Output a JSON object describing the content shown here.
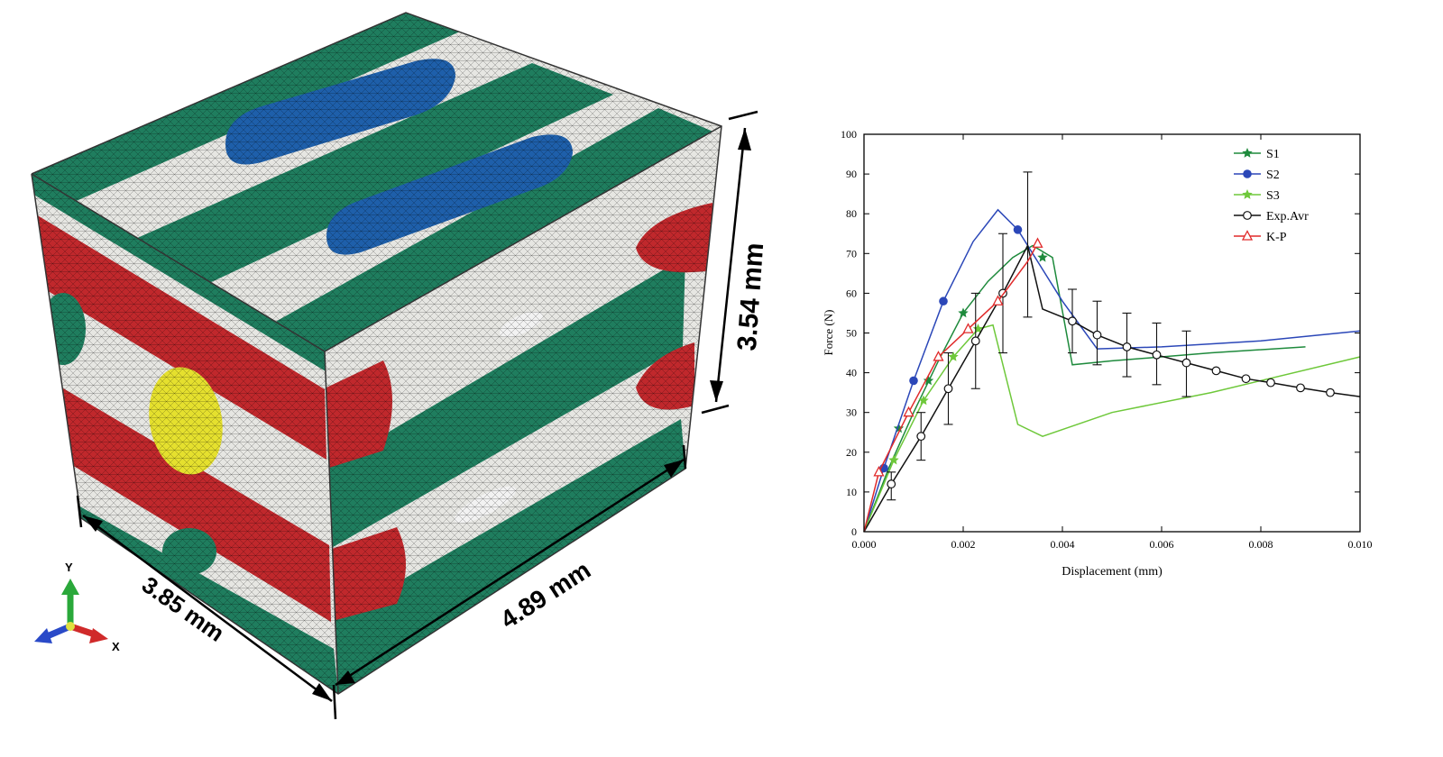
{
  "model": {
    "dimensions": {
      "height": "3.54 mm",
      "width": "4.89 mm",
      "depth": "3.85 mm"
    },
    "triad": {
      "y": "Y",
      "x": "X"
    },
    "colors": {
      "green": "#1f7d5e",
      "blue": "#1e5faa",
      "red": "#c0282c",
      "yellow": "#e5e02e",
      "matrix": "#e6e6e2"
    }
  },
  "chart_data": {
    "type": "line",
    "xlabel": "Displacement (mm)",
    "ylabel": "Force (N)",
    "xlim": [
      0,
      0.01
    ],
    "ylim": [
      0,
      100
    ],
    "xticks": [
      "0.000",
      "0.002",
      "0.004",
      "0.006",
      "0.008",
      "0.010"
    ],
    "yticks": [
      "0",
      "10",
      "20",
      "30",
      "40",
      "50",
      "60",
      "70",
      "80",
      "90",
      "100"
    ],
    "legend_position": "top-right",
    "series": [
      {
        "name": "S1",
        "color": "#1e8a3c",
        "marker": "star",
        "x": [
          0,
          0.0005,
          0.001,
          0.0015,
          0.002,
          0.0025,
          0.003,
          0.0034,
          0.0038,
          0.0042,
          0.005,
          0.006,
          0.007,
          0.0089
        ],
        "y": [
          0,
          16,
          30,
          43,
          55,
          63,
          69,
          72,
          69,
          42,
          43,
          44,
          45,
          46.5
        ],
        "marker_x": [
          0.0007,
          0.0013,
          0.002,
          0.0036
        ],
        "marker_y": [
          26,
          38,
          55,
          69
        ]
      },
      {
        "name": "S2",
        "color": "#2b47b8",
        "marker": "circle",
        "x": [
          0,
          0.0004,
          0.001,
          0.0016,
          0.0022,
          0.0027,
          0.0031,
          0.0035,
          0.004,
          0.0047,
          0.006,
          0.008,
          0.01
        ],
        "y": [
          0,
          16,
          38,
          58,
          73,
          81,
          76,
          68,
          58,
          46,
          46.5,
          48,
          50.5
        ],
        "marker_x": [
          0.0004,
          0.001,
          0.0016,
          0.0031
        ],
        "marker_y": [
          16,
          38,
          58,
          76
        ]
      },
      {
        "name": "S3",
        "color": "#6ec83a",
        "marker": "star",
        "x": [
          0,
          0.0006,
          0.0012,
          0.0018,
          0.0023,
          0.0026,
          0.0031,
          0.0036,
          0.005,
          0.007,
          0.01
        ],
        "y": [
          0,
          18,
          33,
          44,
          51,
          52,
          27,
          24,
          30,
          35,
          44
        ],
        "marker_x": [
          0.0006,
          0.0012,
          0.0018,
          0.0023
        ],
        "marker_y": [
          18,
          33,
          44,
          51
        ]
      },
      {
        "name": "Exp.Avr",
        "color": "#111111",
        "marker": "open-circle",
        "x": [
          0,
          0.00055,
          0.00115,
          0.0017,
          0.00225,
          0.0028,
          0.0033,
          0.0036,
          0.0042,
          0.0047,
          0.0053,
          0.0059,
          0.0065,
          0.0071,
          0.0077,
          0.0082,
          0.0088,
          0.0094,
          0.01
        ],
        "y": [
          0,
          12,
          24,
          36,
          48,
          60,
          72,
          56,
          53,
          49.5,
          46.5,
          44.5,
          42.5,
          40.5,
          38.5,
          37.5,
          36.2,
          35,
          34
        ],
        "marker_x": [
          0.00055,
          0.00115,
          0.0017,
          0.00225,
          0.0028,
          0.0042,
          0.0047,
          0.0053,
          0.0059,
          0.0065,
          0.0071,
          0.0077,
          0.0082,
          0.0088,
          0.0094
        ],
        "marker_y": [
          12,
          24,
          36,
          48,
          60,
          53,
          49.5,
          46.5,
          44.5,
          42.5,
          40.5,
          38.5,
          37.5,
          36.2,
          35
        ],
        "error_x": [
          0.00055,
          0.00115,
          0.0017,
          0.00225,
          0.0028,
          0.0033,
          0.0042,
          0.0047,
          0.0053,
          0.0059,
          0.0065
        ],
        "error_low": [
          8,
          18,
          27,
          36,
          45,
          54,
          45,
          42,
          39,
          37,
          34
        ],
        "error_high": [
          15,
          30,
          45,
          60,
          75,
          90.5,
          61,
          58,
          55,
          52.5,
          50.5
        ]
      },
      {
        "name": "K-P",
        "color": "#e02a2a",
        "marker": "open-triangle",
        "x": [
          0,
          0.0003,
          0.0009,
          0.0015,
          0.0021,
          0.0027,
          0.0033,
          0.0035
        ],
        "y": [
          0,
          15,
          30,
          44,
          51,
          58,
          68,
          72.5
        ],
        "marker_x": [
          0.0003,
          0.0009,
          0.0015,
          0.0021,
          0.0027,
          0.0035
        ],
        "marker_y": [
          15,
          30,
          44,
          51,
          58,
          72.5
        ]
      }
    ]
  }
}
